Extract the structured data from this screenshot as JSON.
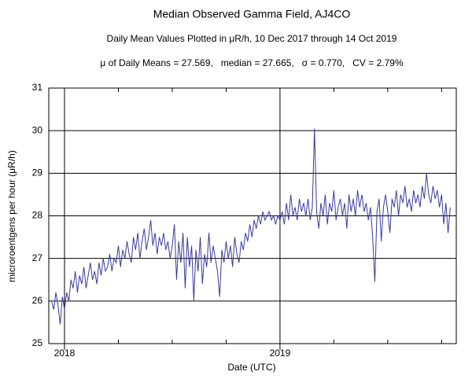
{
  "chart_data": {
    "type": "line",
    "title": "Median Observed Gamma Field, AJ4CO",
    "subtitle": "Daily Mean Values Plotted in μR/h, 10 Dec 2017 through 14 Oct 2019",
    "annotation": "μ of Daily Means = 27.569,   median = 27.665,   σ = 0.770,   CV = 2.79%",
    "x_label": "Date (UTC)",
    "y_label": "microroentgens per hour (μR/h)",
    "xlim": [
      2017.927,
      2019.818
    ],
    "xticks": [
      2018,
      2019
    ],
    "xminorticks": [
      2018.25,
      2018.5,
      2018.75,
      2019.25,
      2019.5,
      2019.75
    ],
    "ylim": [
      25,
      31
    ],
    "yticks": [
      25,
      26,
      27,
      28,
      29,
      30,
      31
    ],
    "grid": true,
    "series": [
      {
        "color": "#3b3b9c",
        "x": [
          2017.94,
          2017.95,
          2017.96,
          2017.97,
          2017.98,
          2017.99,
          2018.0,
          2018.01,
          2018.02,
          2018.03,
          2018.04,
          2018.05,
          2018.06,
          2018.07,
          2018.08,
          2018.09,
          2018.1,
          2018.11,
          2018.12,
          2018.13,
          2018.14,
          2018.15,
          2018.16,
          2018.17,
          2018.18,
          2018.19,
          2018.2,
          2018.21,
          2018.22,
          2018.23,
          2018.24,
          2018.25,
          2018.26,
          2018.27,
          2018.28,
          2018.29,
          2018.3,
          2018.31,
          2018.32,
          2018.33,
          2018.34,
          2018.35,
          2018.36,
          2018.37,
          2018.38,
          2018.39,
          2018.4,
          2018.41,
          2018.42,
          2018.43,
          2018.44,
          2018.45,
          2018.46,
          2018.47,
          2018.48,
          2018.49,
          2018.5,
          2018.51,
          2018.52,
          2018.53,
          2018.54,
          2018.55,
          2018.56,
          2018.57,
          2018.58,
          2018.59,
          2018.6,
          2018.61,
          2018.62,
          2018.63,
          2018.64,
          2018.65,
          2018.66,
          2018.67,
          2018.68,
          2018.69,
          2018.7,
          2018.71,
          2018.72,
          2018.73,
          2018.74,
          2018.75,
          2018.76,
          2018.77,
          2018.78,
          2018.79,
          2018.8,
          2018.81,
          2018.82,
          2018.83,
          2018.84,
          2018.85,
          2018.86,
          2018.87,
          2018.88,
          2018.89,
          2018.9,
          2018.91,
          2018.92,
          2018.93,
          2018.94,
          2018.95,
          2018.96,
          2018.97,
          2018.98,
          2018.99,
          2019.0,
          2019.01,
          2019.02,
          2019.03,
          2019.04,
          2019.05,
          2019.06,
          2019.07,
          2019.08,
          2019.09,
          2019.1,
          2019.11,
          2019.12,
          2019.13,
          2019.14,
          2019.15,
          2019.16,
          2019.17,
          2019.18,
          2019.19,
          2019.2,
          2019.21,
          2019.22,
          2019.23,
          2019.24,
          2019.25,
          2019.26,
          2019.27,
          2019.28,
          2019.29,
          2019.3,
          2019.31,
          2019.32,
          2019.33,
          2019.34,
          2019.35,
          2019.36,
          2019.37,
          2019.38,
          2019.39,
          2019.4,
          2019.41,
          2019.42,
          2019.43,
          2019.44,
          2019.45,
          2019.46,
          2019.47,
          2019.48,
          2019.49,
          2019.5,
          2019.51,
          2019.52,
          2019.53,
          2019.54,
          2019.55,
          2019.56,
          2019.57,
          2019.58,
          2019.59,
          2019.6,
          2019.61,
          2019.62,
          2019.63,
          2019.64,
          2019.65,
          2019.66,
          2019.67,
          2019.68,
          2019.69,
          2019.7,
          2019.71,
          2019.72,
          2019.73,
          2019.74,
          2019.75,
          2019.76,
          2019.77,
          2019.78,
          2019.79
        ],
        "values": [
          26.0,
          25.8,
          26.2,
          25.9,
          25.45,
          26.1,
          25.8,
          26.2,
          26.0,
          26.5,
          26.3,
          26.7,
          26.2,
          26.6,
          26.4,
          26.8,
          26.3,
          26.6,
          26.9,
          26.5,
          26.7,
          26.4,
          26.9,
          26.6,
          27.0,
          26.7,
          26.8,
          27.1,
          26.7,
          27.0,
          26.9,
          27.3,
          26.8,
          27.2,
          27.0,
          27.4,
          27.1,
          26.9,
          27.5,
          27.2,
          27.6,
          27.0,
          27.4,
          27.7,
          27.2,
          27.5,
          27.9,
          27.3,
          27.6,
          27.1,
          27.5,
          27.3,
          27.6,
          27.2,
          27.4,
          27.0,
          27.3,
          27.8,
          26.5,
          27.4,
          26.9,
          27.6,
          26.3,
          27.5,
          26.8,
          27.3,
          26.0,
          27.2,
          26.7,
          27.5,
          26.4,
          27.1,
          26.8,
          27.6,
          26.9,
          27.3,
          27.0,
          26.7,
          26.1,
          27.2,
          26.9,
          27.4,
          27.0,
          27.3,
          26.8,
          27.5,
          27.1,
          26.9,
          27.4,
          27.2,
          27.6,
          27.4,
          27.8,
          27.5,
          27.9,
          27.7,
          28.0,
          27.8,
          28.1,
          27.9,
          28.0,
          28.1,
          27.9,
          28.0,
          27.8,
          28.0,
          27.9,
          28.1,
          27.8,
          28.3,
          27.9,
          28.5,
          28.0,
          28.2,
          27.9,
          28.4,
          28.1,
          28.3,
          28.0,
          28.4,
          27.9,
          28.2,
          30.05,
          28.1,
          27.7,
          28.3,
          28.0,
          28.5,
          27.8,
          28.3,
          28.1,
          28.6,
          27.9,
          28.2,
          28.4,
          28.0,
          28.3,
          27.7,
          28.5,
          28.1,
          28.4,
          28.0,
          28.6,
          28.2,
          28.5,
          28.1,
          28.3,
          27.9,
          28.2,
          27.5,
          26.45,
          28.1,
          28.4,
          27.4,
          28.2,
          28.5,
          28.1,
          27.6,
          28.4,
          28.2,
          28.6,
          28.0,
          28.5,
          28.3,
          28.7,
          28.2,
          28.4,
          28.1,
          28.6,
          28.3,
          28.5,
          28.2,
          28.7,
          28.4,
          29.0,
          28.5,
          28.3,
          28.7,
          28.4,
          28.6,
          28.2,
          28.5,
          27.8,
          28.3,
          27.6,
          28.2
        ]
      }
    ]
  }
}
